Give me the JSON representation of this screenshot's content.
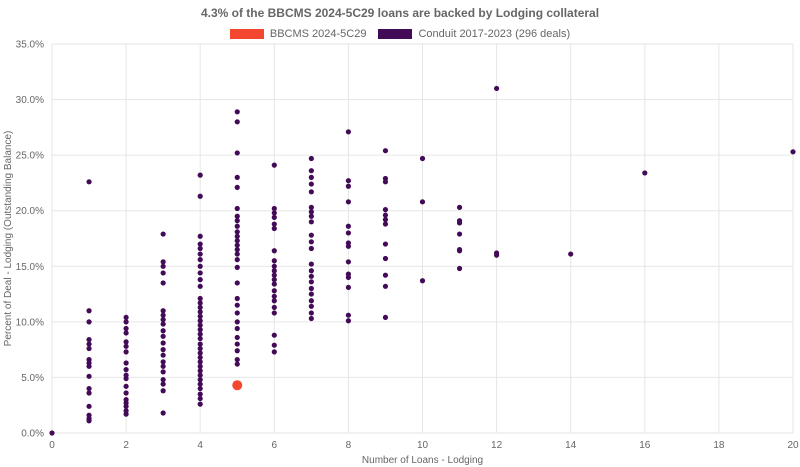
{
  "chart_data": {
    "type": "scatter",
    "title": "4.3% of the BBCMS 2024-5C29 loans are backed by Lodging collateral",
    "xlabel": "Number of Loans - Lodging",
    "ylabel": "Percent of Deal - Lodging (Outstanding Balance)",
    "xlim": [
      0,
      20
    ],
    "ylim": [
      0,
      35
    ],
    "x_ticks": [
      0,
      2,
      4,
      6,
      8,
      10,
      12,
      14,
      16,
      18,
      20
    ],
    "y_ticks": [
      0,
      5,
      10,
      15,
      20,
      25,
      30,
      35
    ],
    "y_tick_labels": [
      "0.0%",
      "5.0%",
      "10.0%",
      "15.0%",
      "20.0%",
      "25.0%",
      "30.0%",
      "35.0%"
    ],
    "grid": true,
    "legend_position": "top-center",
    "series": [
      {
        "name": "BBCMS 2024-5C29",
        "color": "#f4472f",
        "points": [
          [
            5,
            4.3
          ]
        ]
      },
      {
        "name": "Conduit 2017-2023 (296 deals)",
        "color": "#430a57",
        "points": [
          [
            0,
            0.0
          ],
          [
            1,
            22.6
          ],
          [
            1,
            11.0
          ],
          [
            1,
            10.0
          ],
          [
            1,
            8.4
          ],
          [
            1,
            8.0
          ],
          [
            1,
            7.6
          ],
          [
            1,
            6.6
          ],
          [
            1,
            6.3
          ],
          [
            1,
            6.0
          ],
          [
            1,
            5.1
          ],
          [
            1,
            4.0
          ],
          [
            1,
            3.6
          ],
          [
            1,
            2.4
          ],
          [
            1,
            1.6
          ],
          [
            1,
            1.3
          ],
          [
            1,
            1.1
          ],
          [
            2,
            10.4
          ],
          [
            2,
            10.0
          ],
          [
            2,
            9.4
          ],
          [
            2,
            9.0
          ],
          [
            2,
            8.2
          ],
          [
            2,
            7.8
          ],
          [
            2,
            7.3
          ],
          [
            2,
            6.3
          ],
          [
            2,
            5.7
          ],
          [
            2,
            5.2
          ],
          [
            2,
            4.9
          ],
          [
            2,
            4.2
          ],
          [
            2,
            3.6
          ],
          [
            2,
            3.0
          ],
          [
            2,
            2.7
          ],
          [
            2,
            2.4
          ],
          [
            2,
            2.0
          ],
          [
            2,
            1.7
          ],
          [
            3,
            17.9
          ],
          [
            3,
            15.4
          ],
          [
            3,
            15.0
          ],
          [
            3,
            14.4
          ],
          [
            3,
            13.5
          ],
          [
            3,
            11.0
          ],
          [
            3,
            10.6
          ],
          [
            3,
            10.2
          ],
          [
            3,
            9.8
          ],
          [
            3,
            9.2
          ],
          [
            3,
            8.7
          ],
          [
            3,
            8.1
          ],
          [
            3,
            7.5
          ],
          [
            3,
            7.0
          ],
          [
            3,
            6.4
          ],
          [
            3,
            6.0
          ],
          [
            3,
            5.5
          ],
          [
            3,
            4.8
          ],
          [
            3,
            4.4
          ],
          [
            3,
            3.8
          ],
          [
            3,
            1.8
          ],
          [
            4,
            23.2
          ],
          [
            4,
            21.3
          ],
          [
            4,
            17.7
          ],
          [
            4,
            17.0
          ],
          [
            4,
            16.6
          ],
          [
            4,
            16.1
          ],
          [
            4,
            15.6
          ],
          [
            4,
            15.0
          ],
          [
            4,
            14.4
          ],
          [
            4,
            13.8
          ],
          [
            4,
            13.2
          ],
          [
            4,
            12.1
          ],
          [
            4,
            11.7
          ],
          [
            4,
            11.3
          ],
          [
            4,
            10.9
          ],
          [
            4,
            10.5
          ],
          [
            4,
            10.1
          ],
          [
            4,
            9.7
          ],
          [
            4,
            9.3
          ],
          [
            4,
            8.9
          ],
          [
            4,
            8.5
          ],
          [
            4,
            8.0
          ],
          [
            4,
            7.6
          ],
          [
            4,
            7.2
          ],
          [
            4,
            6.8
          ],
          [
            4,
            6.4
          ],
          [
            4,
            6.0
          ],
          [
            4,
            5.6
          ],
          [
            4,
            5.2
          ],
          [
            4,
            4.8
          ],
          [
            4,
            4.4
          ],
          [
            4,
            4.0
          ],
          [
            4,
            3.5
          ],
          [
            4,
            3.1
          ],
          [
            4,
            2.6
          ],
          [
            5,
            28.9
          ],
          [
            5,
            28.0
          ],
          [
            5,
            25.2
          ],
          [
            5,
            23.0
          ],
          [
            5,
            22.1
          ],
          [
            5,
            20.2
          ],
          [
            5,
            19.5
          ],
          [
            5,
            19.1
          ],
          [
            5,
            18.6
          ],
          [
            5,
            18.1
          ],
          [
            5,
            17.7
          ],
          [
            5,
            17.3
          ],
          [
            5,
            16.9
          ],
          [
            5,
            16.5
          ],
          [
            5,
            16.1
          ],
          [
            5,
            15.6
          ],
          [
            5,
            14.9
          ],
          [
            5,
            13.5
          ],
          [
            5,
            12.1
          ],
          [
            5,
            11.5
          ],
          [
            5,
            10.8
          ],
          [
            5,
            10.0
          ],
          [
            5,
            9.4
          ],
          [
            5,
            8.6
          ],
          [
            5,
            8.0
          ],
          [
            5,
            7.4
          ],
          [
            5,
            6.6
          ],
          [
            5,
            6.2
          ],
          [
            6,
            24.1
          ],
          [
            6,
            20.2
          ],
          [
            6,
            19.8
          ],
          [
            6,
            19.4
          ],
          [
            6,
            18.8
          ],
          [
            6,
            18.4
          ],
          [
            6,
            16.4
          ],
          [
            6,
            15.5
          ],
          [
            6,
            15.0
          ],
          [
            6,
            14.6
          ],
          [
            6,
            14.2
          ],
          [
            6,
            13.8
          ],
          [
            6,
            13.4
          ],
          [
            6,
            12.8
          ],
          [
            6,
            12.3
          ],
          [
            6,
            11.9
          ],
          [
            6,
            11.3
          ],
          [
            6,
            10.8
          ],
          [
            6,
            8.8
          ],
          [
            6,
            7.9
          ],
          [
            6,
            7.3
          ],
          [
            7,
            24.7
          ],
          [
            7,
            23.6
          ],
          [
            7,
            23.0
          ],
          [
            7,
            22.4
          ],
          [
            7,
            21.7
          ],
          [
            7,
            20.3
          ],
          [
            7,
            19.9
          ],
          [
            7,
            19.5
          ],
          [
            7,
            19.0
          ],
          [
            7,
            17.8
          ],
          [
            7,
            17.2
          ],
          [
            7,
            16.6
          ],
          [
            7,
            15.2
          ],
          [
            7,
            14.6
          ],
          [
            7,
            14.1
          ],
          [
            7,
            13.6
          ],
          [
            7,
            13.0
          ],
          [
            7,
            12.5
          ],
          [
            7,
            11.9
          ],
          [
            7,
            11.4
          ],
          [
            7,
            10.8
          ],
          [
            7,
            10.3
          ],
          [
            8,
            27.1
          ],
          [
            8,
            22.7
          ],
          [
            8,
            22.2
          ],
          [
            8,
            20.8
          ],
          [
            8,
            18.6
          ],
          [
            8,
            18.0
          ],
          [
            8,
            17.1
          ],
          [
            8,
            16.8
          ],
          [
            8,
            15.4
          ],
          [
            8,
            14.3
          ],
          [
            8,
            14.0
          ],
          [
            8,
            13.1
          ],
          [
            8,
            10.6
          ],
          [
            8,
            10.1
          ],
          [
            9,
            25.4
          ],
          [
            9,
            22.9
          ],
          [
            9,
            22.6
          ],
          [
            9,
            20.1
          ],
          [
            9,
            19.6
          ],
          [
            9,
            19.2
          ],
          [
            9,
            18.8
          ],
          [
            9,
            17.0
          ],
          [
            9,
            15.7
          ],
          [
            9,
            14.2
          ],
          [
            9,
            13.2
          ],
          [
            9,
            10.4
          ],
          [
            10,
            24.7
          ],
          [
            10,
            20.8
          ],
          [
            10,
            13.7
          ],
          [
            11,
            20.3
          ],
          [
            11,
            19.1
          ],
          [
            11,
            18.9
          ],
          [
            11,
            17.9
          ],
          [
            11,
            16.5
          ],
          [
            11,
            16.4
          ],
          [
            11,
            14.8
          ],
          [
            12,
            31.0
          ],
          [
            12,
            16.2
          ],
          [
            12,
            16.0
          ],
          [
            14,
            16.1
          ],
          [
            16,
            23.4
          ],
          [
            20,
            25.3
          ]
        ]
      }
    ]
  }
}
